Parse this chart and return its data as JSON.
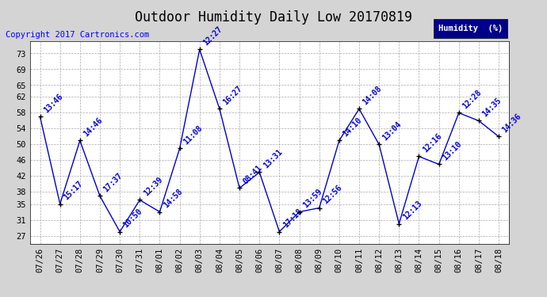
{
  "title": "Outdoor Humidity Daily Low 20170819",
  "copyright": "Copyright 2017 Cartronics.com",
  "legend_label": "Humidity  (%)",
  "x_labels": [
    "07/26",
    "07/27",
    "07/28",
    "07/29",
    "07/30",
    "07/31",
    "08/01",
    "08/02",
    "08/03",
    "08/04",
    "08/05",
    "08/06",
    "08/07",
    "08/08",
    "08/09",
    "08/10",
    "08/11",
    "08/12",
    "08/13",
    "08/14",
    "08/15",
    "08/16",
    "08/17",
    "08/18"
  ],
  "y_values": [
    57,
    35,
    51,
    37,
    28,
    36,
    33,
    49,
    74,
    59,
    39,
    43,
    28,
    33,
    34,
    51,
    59,
    50,
    30,
    47,
    45,
    58,
    56,
    52
  ],
  "annotations": [
    "13:46",
    "15:17",
    "14:46",
    "17:37",
    "10:50",
    "12:39",
    "14:58",
    "11:08",
    "12:27",
    "16:27",
    "08:41",
    "13:31",
    "17:18",
    "13:59",
    "12:56",
    "14:10",
    "14:08",
    "13:04",
    "12:13",
    "12:16",
    "13:10",
    "12:28",
    "14:35",
    "14:36"
  ],
  "line_color": "#0000cc",
  "marker_color": "#000000",
  "annotation_color": "#0000cc",
  "background_color": "#d4d4d4",
  "plot_bg_color": "#ffffff",
  "grid_color": "#aaaaaa",
  "ylim": [
    25,
    76
  ],
  "yticks": [
    27,
    31,
    35,
    38,
    42,
    46,
    50,
    54,
    58,
    62,
    65,
    69,
    73
  ],
  "title_fontsize": 12,
  "annotation_fontsize": 7,
  "copyright_fontsize": 7.5,
  "tick_fontsize": 7.5,
  "legend_bg": "#00008b",
  "legend_text_color": "#ffffff"
}
